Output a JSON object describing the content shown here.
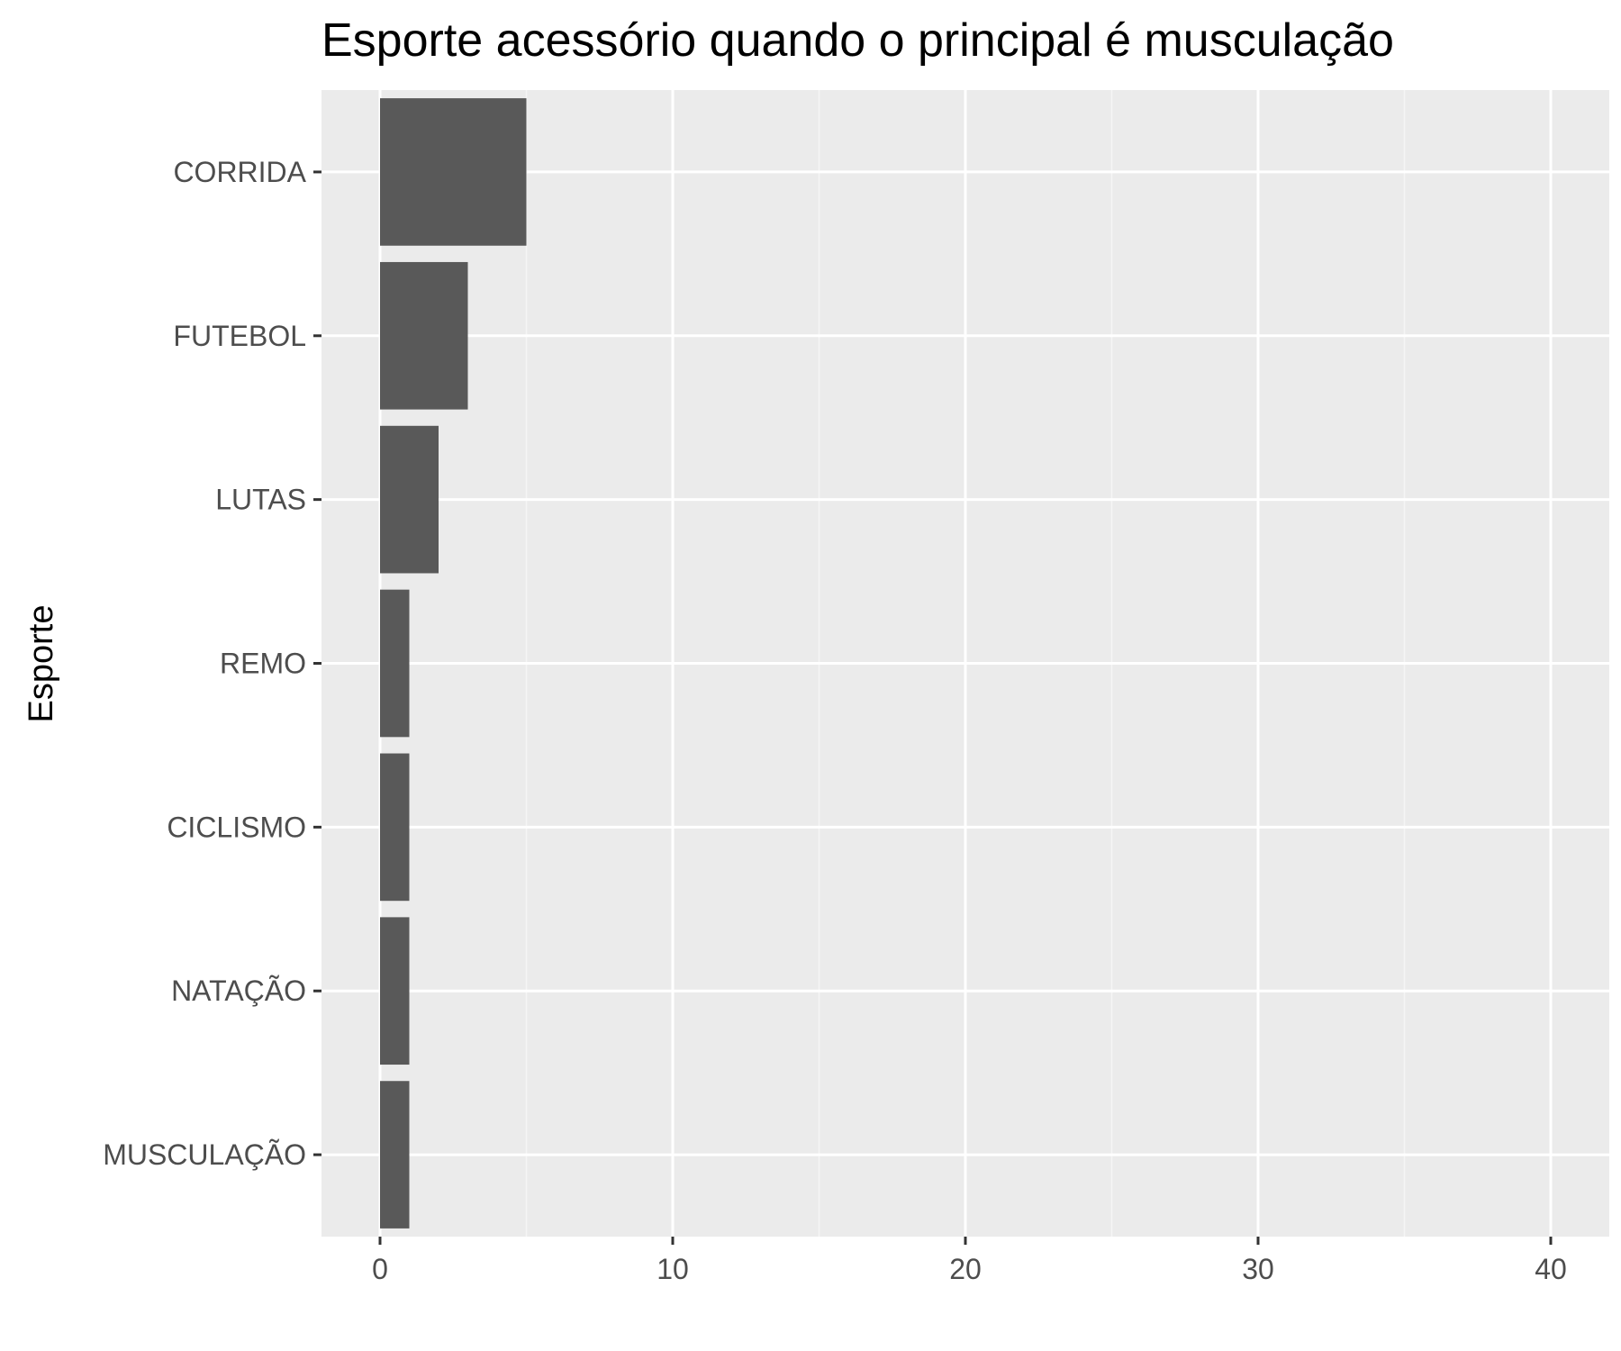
{
  "chart_data": {
    "type": "bar",
    "orientation": "horizontal",
    "title": "Esporte acessório quando o principal é musculação",
    "xlabel": "",
    "ylabel": "Esporte",
    "categories": [
      "CORRIDA",
      "FUTEBOL",
      "LUTAS",
      "REMO",
      "CICLISMO",
      "NATAÇÃO",
      "MUSCULAÇÃO"
    ],
    "values": [
      5,
      3,
      2,
      1,
      1,
      1,
      1
    ],
    "xlim": [
      -2,
      42
    ],
    "xticks": [
      0,
      10,
      20,
      30,
      40
    ],
    "grid": true,
    "colors": {
      "bar": "#595959",
      "panel": "#ebebeb",
      "grid_major": "#ffffff",
      "grid_minor": "#f5f5f5",
      "tick": "#333333"
    }
  }
}
